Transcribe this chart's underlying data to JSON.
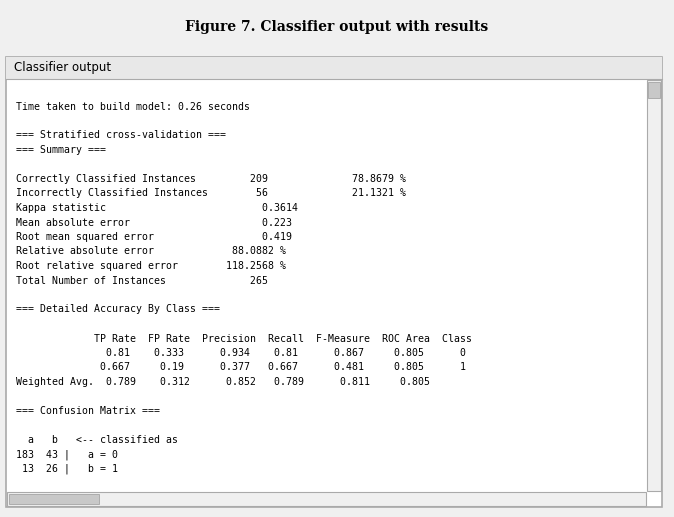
{
  "title": "Figure 7. Classifier output with results",
  "panel_title": "Classifier output",
  "content_lines": [
    "",
    "Time taken to build model: 0.26 seconds",
    "",
    "=== Stratified cross-validation ===",
    "=== Summary ===",
    "",
    "Correctly Classified Instances         209              78.8679 %",
    "Incorrectly Classified Instances        56              21.1321 %",
    "Kappa statistic                          0.3614",
    "Mean absolute error                      0.223",
    "Root mean squared error                  0.419",
    "Relative absolute error             88.0882 %",
    "Root relative squared error        118.2568 %",
    "Total Number of Instances              265",
    "",
    "=== Detailed Accuracy By Class ===",
    "",
    "             TP Rate  FP Rate  Precision  Recall  F-Measure  ROC Area  Class",
    "               0.81    0.333      0.934    0.81      0.867     0.805      0",
    "              0.667     0.19      0.377   0.667      0.481     0.805      1",
    "Weighted Avg.  0.789    0.312      0.852   0.789      0.811     0.805",
    "",
    "=== Confusion Matrix ===",
    "",
    "  a   b   <-- classified as",
    "183  43 |   a = 0",
    " 13  26 |   b = 1"
  ],
  "bg_color": "#f0f0f0",
  "panel_bg": "#ffffff",
  "panel_border": "#aaaaaa",
  "panel_title_bg": "#e8e8e8",
  "text_color": "#000000",
  "font_size": 7.1,
  "title_font_size": 10,
  "scrollbar_color": "#c8c8c8"
}
